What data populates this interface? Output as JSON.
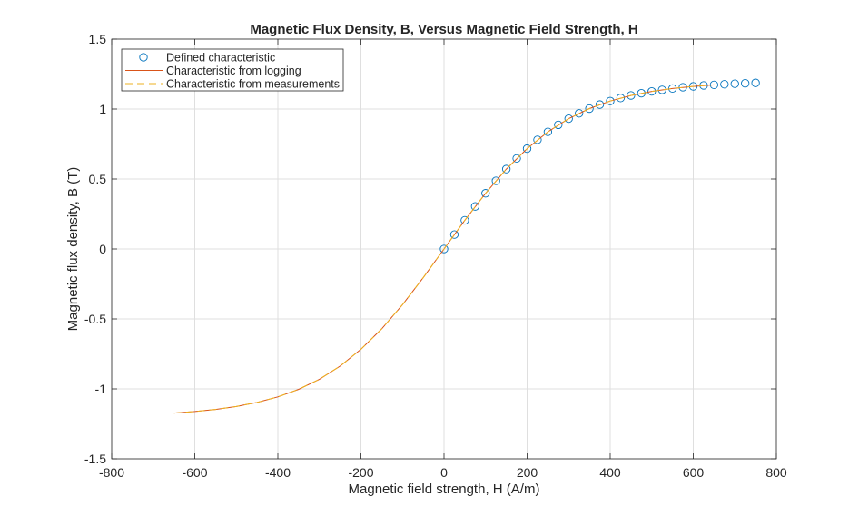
{
  "chart_data": {
    "type": "line",
    "title": "Magnetic Flux Density, B, Versus Magnetic Field Strength, H",
    "xlabel": "Magnetic field strength, H (A/m)",
    "ylabel": "Magnetic flux density, B (T)",
    "xlim": [
      -800,
      800
    ],
    "ylim": [
      -1.5,
      1.5
    ],
    "xticks": [
      -800,
      -600,
      -400,
      -200,
      0,
      200,
      400,
      600,
      800
    ],
    "yticks": [
      -1.5,
      -1,
      -0.5,
      0,
      0.5,
      1,
      1.5
    ],
    "xtick_labels": [
      "-800",
      "-600",
      "-400",
      "-200",
      "0",
      "200",
      "400",
      "600",
      "800"
    ],
    "ytick_labels": [
      "-1.5",
      "-1",
      "-0.5",
      "0",
      "0.5",
      "1",
      "1.5"
    ],
    "grid": true,
    "legend_position": "top-left",
    "series": [
      {
        "name": "Defined characteristic",
        "style": "markers-circle",
        "color": "#0072BD",
        "x": [
          0,
          25,
          50,
          75,
          100,
          125,
          150,
          175,
          200,
          225,
          250,
          275,
          300,
          325,
          350,
          375,
          400,
          425,
          450,
          475,
          500,
          525,
          550,
          575,
          600,
          625,
          650,
          675,
          700,
          725,
          750
        ],
        "y": [
          0,
          0.103,
          0.205,
          0.304,
          0.398,
          0.487,
          0.571,
          0.647,
          0.717,
          0.78,
          0.837,
          0.887,
          0.931,
          0.969,
          1.003,
          1.032,
          1.057,
          1.079,
          1.097,
          1.113,
          1.126,
          1.137,
          1.147,
          1.156,
          1.162,
          1.169,
          1.173,
          1.177,
          1.181,
          1.184,
          1.187
        ]
      },
      {
        "name": "Characteristic from logging",
        "style": "solid",
        "color": "#D95319",
        "x": [
          -650,
          -600,
          -550,
          -500,
          -450,
          -400,
          -350,
          -300,
          -250,
          -200,
          -150,
          -100,
          -50,
          0,
          50,
          100,
          150,
          200,
          250,
          300,
          350,
          400,
          450,
          500,
          550,
          600,
          650
        ],
        "y": [
          -1.173,
          -1.162,
          -1.147,
          -1.126,
          -1.097,
          -1.057,
          -1.003,
          -0.931,
          -0.837,
          -0.717,
          -0.571,
          -0.398,
          -0.205,
          0,
          0.205,
          0.398,
          0.571,
          0.717,
          0.837,
          0.931,
          1.003,
          1.057,
          1.097,
          1.126,
          1.147,
          1.162,
          1.173
        ]
      },
      {
        "name": "Characteristic from measurements",
        "style": "dashed",
        "color": "#EDB120",
        "x": [
          -650,
          -600,
          -550,
          -500,
          -450,
          -400,
          -350,
          -300,
          -250,
          -200,
          -150,
          -100,
          -50,
          0,
          50,
          100,
          150,
          200,
          250,
          300,
          350,
          400,
          450,
          500,
          550,
          600,
          650
        ],
        "y": [
          -1.173,
          -1.162,
          -1.147,
          -1.126,
          -1.097,
          -1.057,
          -1.003,
          -0.931,
          -0.837,
          -0.717,
          -0.571,
          -0.398,
          -0.205,
          0,
          0.205,
          0.398,
          0.571,
          0.717,
          0.837,
          0.931,
          1.003,
          1.057,
          1.097,
          1.126,
          1.147,
          1.162,
          1.173
        ]
      }
    ]
  }
}
